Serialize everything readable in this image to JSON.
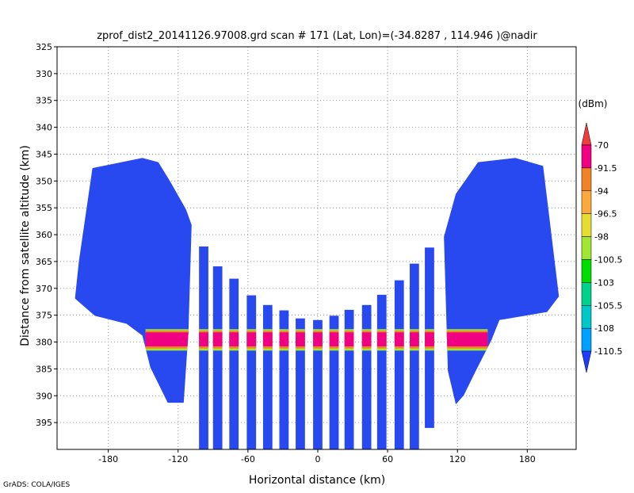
{
  "chart_data": {
    "type": "swath",
    "title": "zprof_dist2_20141126.97008.grd  scan # 171  (Lat, Lon)=(-34.8287 , 114.946 )@nadir",
    "x_label": "Horizontal distance (km)",
    "y_label": "Distance from satellite altitude (km)",
    "credit": "GrADS: COLA/IGES",
    "xlim": [
      -224,
      222
    ],
    "ylim": [
      325,
      400
    ],
    "xticks": [
      -180,
      -120,
      -60,
      0,
      60,
      120,
      180
    ],
    "yticks": [
      325,
      330,
      335,
      340,
      345,
      350,
      355,
      360,
      365,
      370,
      375,
      380,
      385,
      390,
      395
    ],
    "grid": true,
    "swath_color": "#2848f0",
    "swath_width": 8,
    "swaths": [
      {
        "x": -98,
        "top": 362.2,
        "bottom": 400
      },
      {
        "x": -86,
        "top": 365.9,
        "bottom": 400
      },
      {
        "x": -72,
        "top": 368.2,
        "bottom": 400
      },
      {
        "x": -57,
        "top": 371.3,
        "bottom": 400
      },
      {
        "x": -43,
        "top": 373.1,
        "bottom": 400
      },
      {
        "x": -29,
        "top": 374.1,
        "bottom": 400
      },
      {
        "x": -15,
        "top": 375.6,
        "bottom": 400
      },
      {
        "x": 0,
        "top": 375.9,
        "bottom": 400
      },
      {
        "x": 14,
        "top": 375.1,
        "bottom": 400
      },
      {
        "x": 27,
        "top": 374,
        "bottom": 400
      },
      {
        "x": 42,
        "top": 373.1,
        "bottom": 400
      },
      {
        "x": 55,
        "top": 371.2,
        "bottom": 400
      },
      {
        "x": 70,
        "top": 368.5,
        "bottom": 400
      },
      {
        "x": 83,
        "top": 365.4,
        "bottom": 400
      },
      {
        "x": 96,
        "top": 362.4,
        "bottom": 396
      }
    ],
    "blocks": [
      {
        "x": [
          -193.6,
          -150.7,
          -137,
          -126.8,
          -113.2,
          -108.4,
          -111.1,
          -115.2,
          -128.9,
          -143.9,
          -150.7,
          -164.3,
          -191.6,
          -208.6,
          -205.2
        ],
        "y": [
          347.6,
          345.7,
          346.5,
          350.1,
          355.3,
          358.2,
          378.1,
          391.3,
          391.3,
          384.7,
          378.8,
          376.6,
          375.1,
          371.9,
          364.9
        ]
      },
      {
        "x": [
          118.6,
          137.7,
          169.7,
          193.6,
          207.2,
          197,
          156.1,
          149.3,
          135.7,
          125.5,
          118.6,
          111.8,
          108.4
        ],
        "y": [
          352.4,
          346.5,
          345.7,
          347.2,
          371.5,
          374.4,
          375.9,
          379.6,
          385.4,
          389.9,
          391.6,
          385.4,
          360.4
        ]
      }
    ],
    "bands": [
      {
        "x": [
          -148,
          146
        ],
        "y": [
          377.6,
          381.6
        ],
        "color": "#a0e632"
      },
      {
        "x": [
          -148,
          146
        ],
        "y": [
          377.9,
          381.2
        ],
        "color": "#f08228"
      },
      {
        "x": [
          -148,
          146
        ],
        "y": [
          378.2,
          380.8
        ],
        "color": "#f00082"
      }
    ],
    "colorbar_title": "(dBm)",
    "levels": [
      -70,
      -91.5,
      -94,
      -96.5,
      -98,
      -100.5,
      -103,
      -105.5,
      -108,
      -110.5
    ],
    "colors": [
      "#f03c3c",
      "#f00082",
      "#f08228",
      "#faaa3c",
      "#e6dc32",
      "#a0e632",
      "#00dc00",
      "#00d28c",
      "#00c8c8",
      "#00a0ff",
      "#1e3cff"
    ]
  }
}
